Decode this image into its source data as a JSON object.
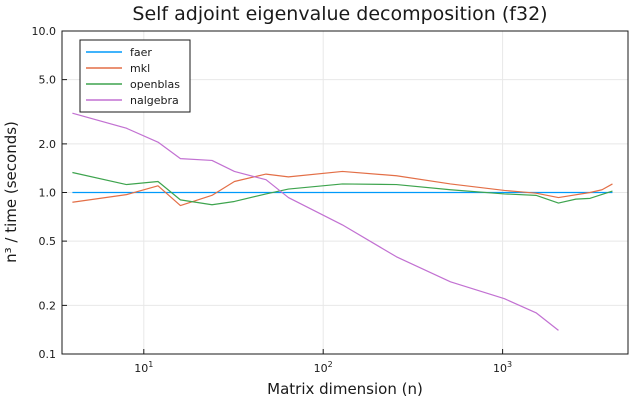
{
  "chart_data": {
    "type": "line",
    "title": "Self adjoint eigenvalue decomposition (f32)",
    "xlabel": "Matrix dimension (n)",
    "ylabel": "n³ / time (seconds)",
    "xscale": "log",
    "yscale": "log",
    "xlim": [
      3.5,
      5000
    ],
    "ylim": [
      0.1,
      10.0
    ],
    "x_ticks": [
      {
        "value": 10,
        "base": "10",
        "exp": "1"
      },
      {
        "value": 100,
        "base": "10",
        "exp": "2"
      },
      {
        "value": 1000,
        "base": "10",
        "exp": "3"
      }
    ],
    "y_ticks": [
      {
        "value": 0.1,
        "label": "0.1"
      },
      {
        "value": 0.2,
        "label": "0.2"
      },
      {
        "value": 0.5,
        "label": "0.5"
      },
      {
        "value": 1.0,
        "label": "1.0"
      },
      {
        "value": 2.0,
        "label": "2.0"
      },
      {
        "value": 5.0,
        "label": "5.0"
      },
      {
        "value": 10.0,
        "label": "10.0"
      }
    ],
    "grid": true,
    "legend": "top-left",
    "series": [
      {
        "name": "faer",
        "color": "#009AFA",
        "points": [
          [
            4,
            1.0
          ],
          [
            4096,
            1.0
          ]
        ]
      },
      {
        "name": "mkl",
        "color": "#E36F47",
        "points": [
          [
            4,
            0.87
          ],
          [
            8,
            0.97
          ],
          [
            12,
            1.1
          ],
          [
            16,
            0.83
          ],
          [
            24,
            0.96
          ],
          [
            32,
            1.17
          ],
          [
            48,
            1.3
          ],
          [
            64,
            1.25
          ],
          [
            128,
            1.35
          ],
          [
            256,
            1.27
          ],
          [
            512,
            1.13
          ],
          [
            1024,
            1.03
          ],
          [
            1536,
            0.99
          ],
          [
            2048,
            0.93
          ],
          [
            3072,
            1.0
          ],
          [
            3584,
            1.04
          ],
          [
            4096,
            1.13
          ]
        ]
      },
      {
        "name": "openblas",
        "color": "#3EA44E",
        "points": [
          [
            4,
            1.33
          ],
          [
            8,
            1.12
          ],
          [
            12,
            1.17
          ],
          [
            16,
            0.9
          ],
          [
            24,
            0.84
          ],
          [
            32,
            0.88
          ],
          [
            48,
            0.98
          ],
          [
            64,
            1.05
          ],
          [
            128,
            1.13
          ],
          [
            256,
            1.12
          ],
          [
            512,
            1.04
          ],
          [
            1024,
            0.98
          ],
          [
            1536,
            0.96
          ],
          [
            2048,
            0.86
          ],
          [
            2560,
            0.91
          ],
          [
            3072,
            0.92
          ],
          [
            4096,
            1.02
          ]
        ]
      },
      {
        "name": "nalgebra",
        "color": "#C271D2",
        "points": [
          [
            4,
            3.1
          ],
          [
            8,
            2.5
          ],
          [
            12,
            2.05
          ],
          [
            16,
            1.62
          ],
          [
            24,
            1.58
          ],
          [
            32,
            1.35
          ],
          [
            48,
            1.2
          ],
          [
            64,
            0.93
          ],
          [
            128,
            0.63
          ],
          [
            256,
            0.4
          ],
          [
            512,
            0.28
          ],
          [
            1024,
            0.22
          ],
          [
            1536,
            0.18
          ],
          [
            2048,
            0.14
          ]
        ]
      }
    ]
  }
}
